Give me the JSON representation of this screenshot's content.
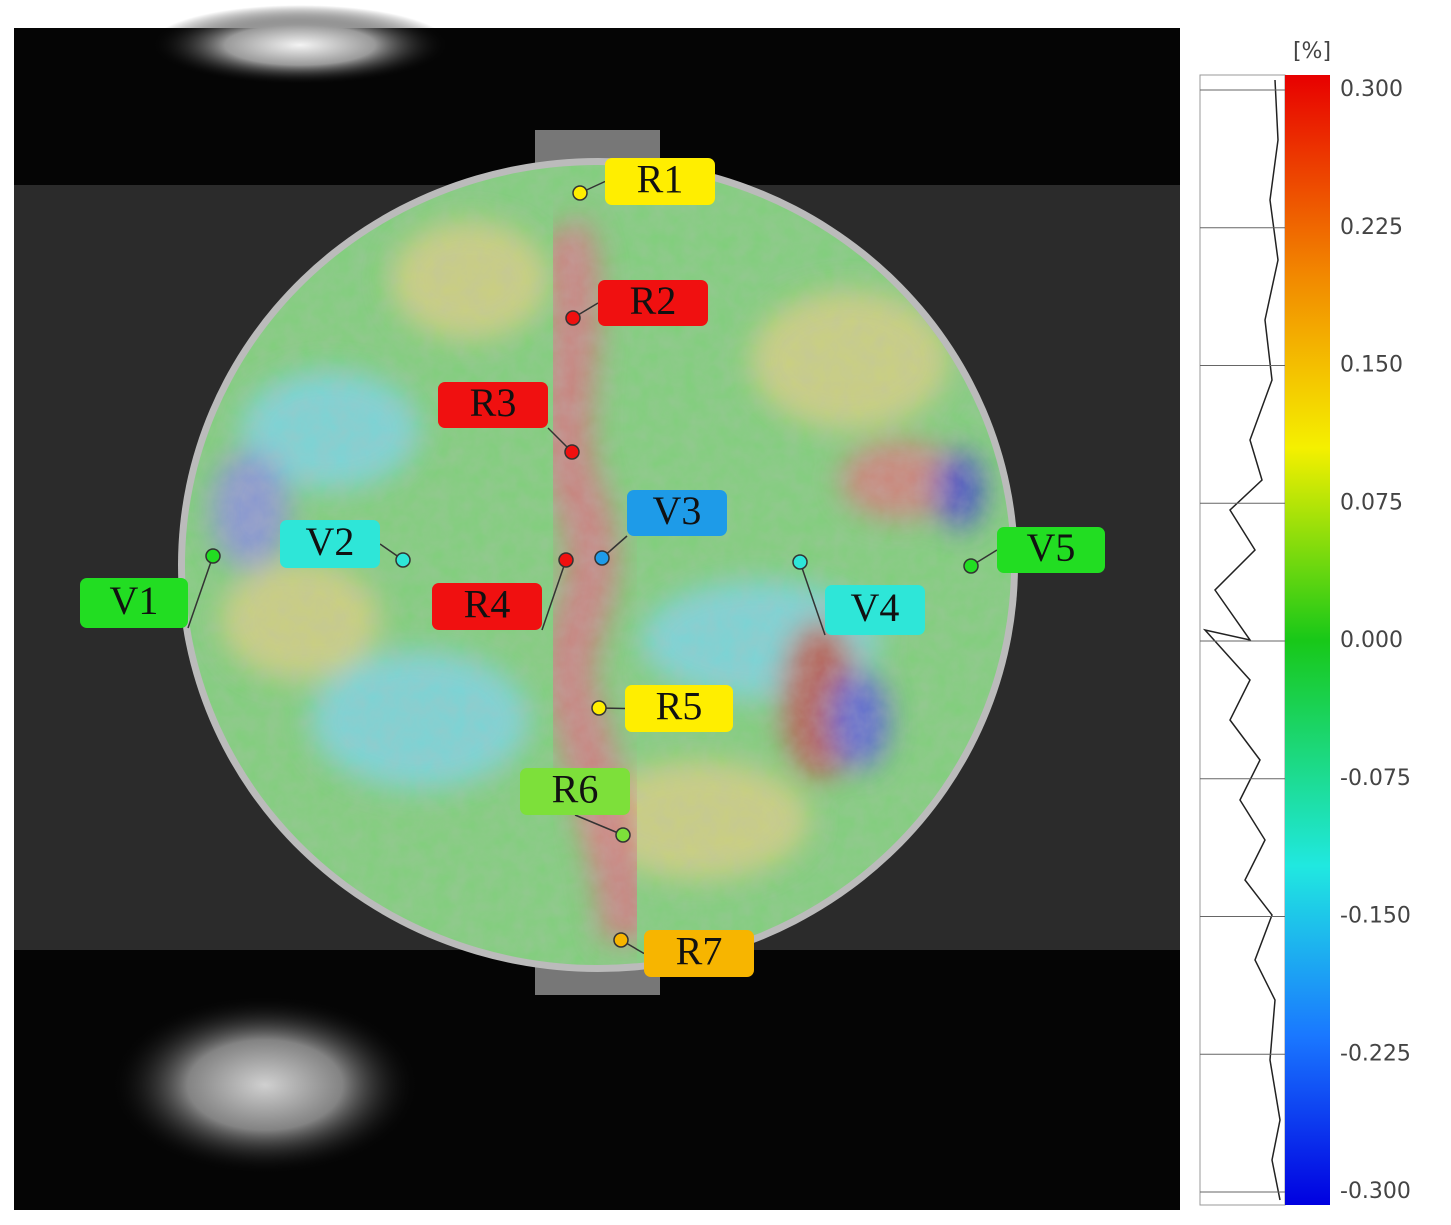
{
  "image": {
    "labels": [
      {
        "text": "R1",
        "color": "#ffee00"
      },
      {
        "text": "R2",
        "color": "#f01010"
      },
      {
        "text": "R3",
        "color": "#f01010"
      },
      {
        "text": "V3",
        "color": "#1e9be8"
      },
      {
        "text": "V2",
        "color": "#2ee6d8"
      },
      {
        "text": "R4",
        "color": "#f01010"
      },
      {
        "text": "V1",
        "color": "#22dd22"
      },
      {
        "text": "V4",
        "color": "#2ee6d8"
      },
      {
        "text": "V5",
        "color": "#22dd22"
      },
      {
        "text": "R5",
        "color": "#ffee00"
      },
      {
        "text": "R6",
        "color": "#7de03a"
      },
      {
        "text": "R7",
        "color": "#f7b500"
      }
    ]
  },
  "colorbar": {
    "unit": "[%]",
    "range": [
      -0.3,
      0.3
    ],
    "ticks": [
      {
        "value": 0.3,
        "label": "0.300"
      },
      {
        "value": 0.225,
        "label": "0.225"
      },
      {
        "value": 0.15,
        "label": "0.150"
      },
      {
        "value": 0.075,
        "label": "0.075"
      },
      {
        "value": 0,
        "label": "0.000"
      },
      {
        "value": -0.075,
        "label": "-0.075"
      },
      {
        "value": -0.15,
        "label": "-0.150"
      },
      {
        "value": -0.225,
        "label": "-0.225"
      },
      {
        "value": -0.3,
        "label": "-0.300"
      }
    ]
  }
}
